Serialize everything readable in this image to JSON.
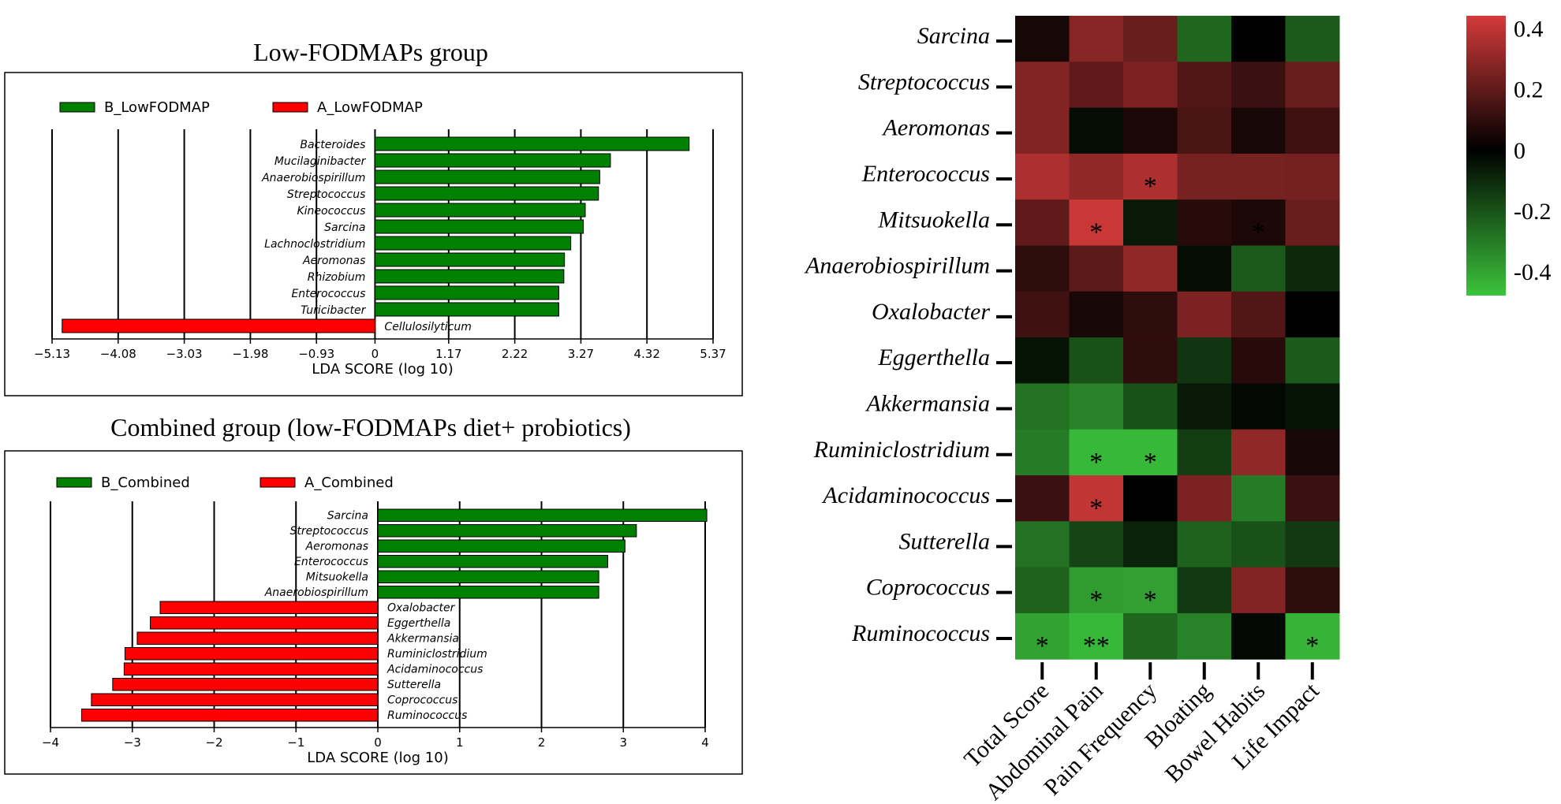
{
  "chart_data": [
    {
      "type": "bar",
      "orientation": "horizontal",
      "title": "Low-FODMAPs group",
      "xlabel": "LDA SCORE (log 10)",
      "xlim": [
        -5.13,
        5.37
      ],
      "xticks": [
        "−5.13",
        "−4.08",
        "−3.03",
        "−1.98",
        "−0.93",
        "0",
        "1.17",
        "2.22",
        "3.27",
        "4.32",
        "5.37"
      ],
      "xtick_values": [
        -5.13,
        -4.08,
        -3.03,
        -1.98,
        -0.93,
        0,
        1.17,
        2.22,
        3.27,
        4.32,
        5.37
      ],
      "legend": [
        {
          "name": "B_LowFODMAP",
          "color": "#008000"
        },
        {
          "name": "A_LowFODMAP",
          "color": "#ff0000"
        }
      ],
      "categories": [
        "Bacteroides",
        "Mucilaginibacter",
        "Anaerobiospirillum",
        "Streptococcus",
        "Kineococcus",
        "Sarcina",
        "Lachnoclostridium",
        "Aeromonas",
        "Rhizobium",
        "Enterococcus",
        "Turicibacter",
        "Cellulosilyticum"
      ],
      "values": [
        4.99,
        3.74,
        3.57,
        3.55,
        3.34,
        3.31,
        3.11,
        3.01,
        3.0,
        2.92,
        2.92,
        -4.97
      ],
      "groups": [
        "B_LowFODMAP",
        "B_LowFODMAP",
        "B_LowFODMAP",
        "B_LowFODMAP",
        "B_LowFODMAP",
        "B_LowFODMAP",
        "B_LowFODMAP",
        "B_LowFODMAP",
        "B_LowFODMAP",
        "B_LowFODMAP",
        "B_LowFODMAP",
        "A_LowFODMAP"
      ]
    },
    {
      "type": "bar",
      "orientation": "horizontal",
      "title": "Combined group (low-FODMAPs diet+ probiotics)",
      "xlabel": "LDA SCORE (log 10)",
      "xlim": [
        -4,
        4
      ],
      "xticks": [
        "−4",
        "−3",
        "−2",
        "−1",
        "0",
        "1",
        "2",
        "3",
        "4"
      ],
      "xtick_values": [
        -4,
        -3,
        -2,
        -1,
        0,
        1,
        2,
        3,
        4
      ],
      "legend": [
        {
          "name": "B_Combined",
          "color": "#008000"
        },
        {
          "name": "A_Combined",
          "color": "#ff0000"
        }
      ],
      "categories": [
        "Sarcina",
        "Streptococcus",
        "Aeromonas",
        "Enterococcus",
        "Mitsuokella",
        "Anaerobiospirillum",
        "Oxalobacter",
        "Eggerthella",
        "Akkermansia",
        "Ruminiclostridium",
        "Acidaminococcus",
        "Sutterella",
        "Coprococcus",
        "Ruminococcus"
      ],
      "values": [
        4.02,
        3.16,
        3.02,
        2.81,
        2.7,
        2.7,
        -2.66,
        -2.78,
        -2.94,
        -3.09,
        -3.1,
        -3.24,
        -3.5,
        -3.62
      ],
      "groups": [
        "B_Combined",
        "B_Combined",
        "B_Combined",
        "B_Combined",
        "B_Combined",
        "B_Combined",
        "A_Combined",
        "A_Combined",
        "A_Combined",
        "A_Combined",
        "A_Combined",
        "A_Combined",
        "A_Combined",
        "A_Combined"
      ]
    },
    {
      "type": "heatmap",
      "title": "",
      "rows": [
        "Sarcina",
        "Streptococcus",
        "Aeromonas",
        "Enterococcus",
        "Mitsuokella",
        "Anaerobiospirillum",
        "Oxalobacter",
        "Eggerthella",
        "Akkermansia",
        "Ruminiclostridium",
        "Acidaminococcus",
        "Sutterella",
        "Coprococcus",
        "Ruminococcus"
      ],
      "columns": [
        "Total Score",
        "Abdominal Pain",
        "Pain Frequency",
        "Bloating",
        "Bowel Habits",
        "Life Impact"
      ],
      "values": [
        [
          0.05,
          0.28,
          0.22,
          -0.25,
          0.0,
          -0.22
        ],
        [
          0.27,
          0.2,
          0.26,
          0.17,
          0.12,
          0.22
        ],
        [
          0.27,
          -0.03,
          0.06,
          0.15,
          0.05,
          0.13
        ],
        [
          0.36,
          0.3,
          0.36,
          0.25,
          0.25,
          0.24
        ],
        [
          0.2,
          0.42,
          -0.06,
          0.08,
          0.06,
          0.22
        ],
        [
          0.1,
          0.19,
          0.3,
          -0.03,
          -0.22,
          -0.1
        ],
        [
          0.13,
          0.05,
          0.1,
          0.26,
          0.17,
          0.0
        ],
        [
          -0.05,
          -0.2,
          0.1,
          -0.13,
          0.08,
          -0.22
        ],
        [
          -0.28,
          -0.32,
          -0.2,
          -0.06,
          -0.02,
          -0.05
        ],
        [
          -0.3,
          -0.45,
          -0.45,
          -0.15,
          0.3,
          0.05
        ],
        [
          0.12,
          0.4,
          0.0,
          0.26,
          -0.3,
          0.12
        ],
        [
          -0.28,
          -0.17,
          -0.08,
          -0.24,
          -0.2,
          -0.14
        ],
        [
          -0.24,
          -0.38,
          -0.39,
          -0.14,
          0.27,
          0.1
        ],
        [
          -0.4,
          -0.45,
          -0.25,
          -0.32,
          -0.02,
          -0.44
        ]
      ],
      "significance": [
        [
          "",
          "",
          "",
          "",
          "",
          ""
        ],
        [
          "",
          "",
          "",
          "",
          "",
          ""
        ],
        [
          "",
          "",
          "",
          "",
          "",
          ""
        ],
        [
          "",
          "",
          "*",
          "",
          "",
          ""
        ],
        [
          "",
          "*",
          "",
          "",
          "*",
          ""
        ],
        [
          "",
          "",
          "",
          "",
          "",
          ""
        ],
        [
          "",
          "",
          "",
          "",
          "",
          ""
        ],
        [
          "",
          "",
          "",
          "",
          "",
          ""
        ],
        [
          "",
          "",
          "",
          "",
          "",
          ""
        ],
        [
          "",
          "*",
          "*",
          "",
          "",
          ""
        ],
        [
          "",
          "*",
          "",
          "",
          "",
          ""
        ],
        [
          "",
          "",
          "",
          "",
          "",
          ""
        ],
        [
          "",
          "*",
          "*",
          "",
          "",
          ""
        ],
        [
          "*",
          "**",
          "",
          "",
          "",
          "*"
        ]
      ],
      "colorbar": {
        "range": [
          -0.48,
          0.44
        ],
        "ticks": [
          0.4,
          0.2,
          0,
          -0.2,
          -0.4
        ],
        "tick_labels": [
          "0.4",
          "0.2",
          "0",
          "-0.2",
          "-0.4"
        ],
        "high_color": "#d43a3a",
        "mid_color": "#000000",
        "low_color": "#3cc43c"
      }
    }
  ]
}
